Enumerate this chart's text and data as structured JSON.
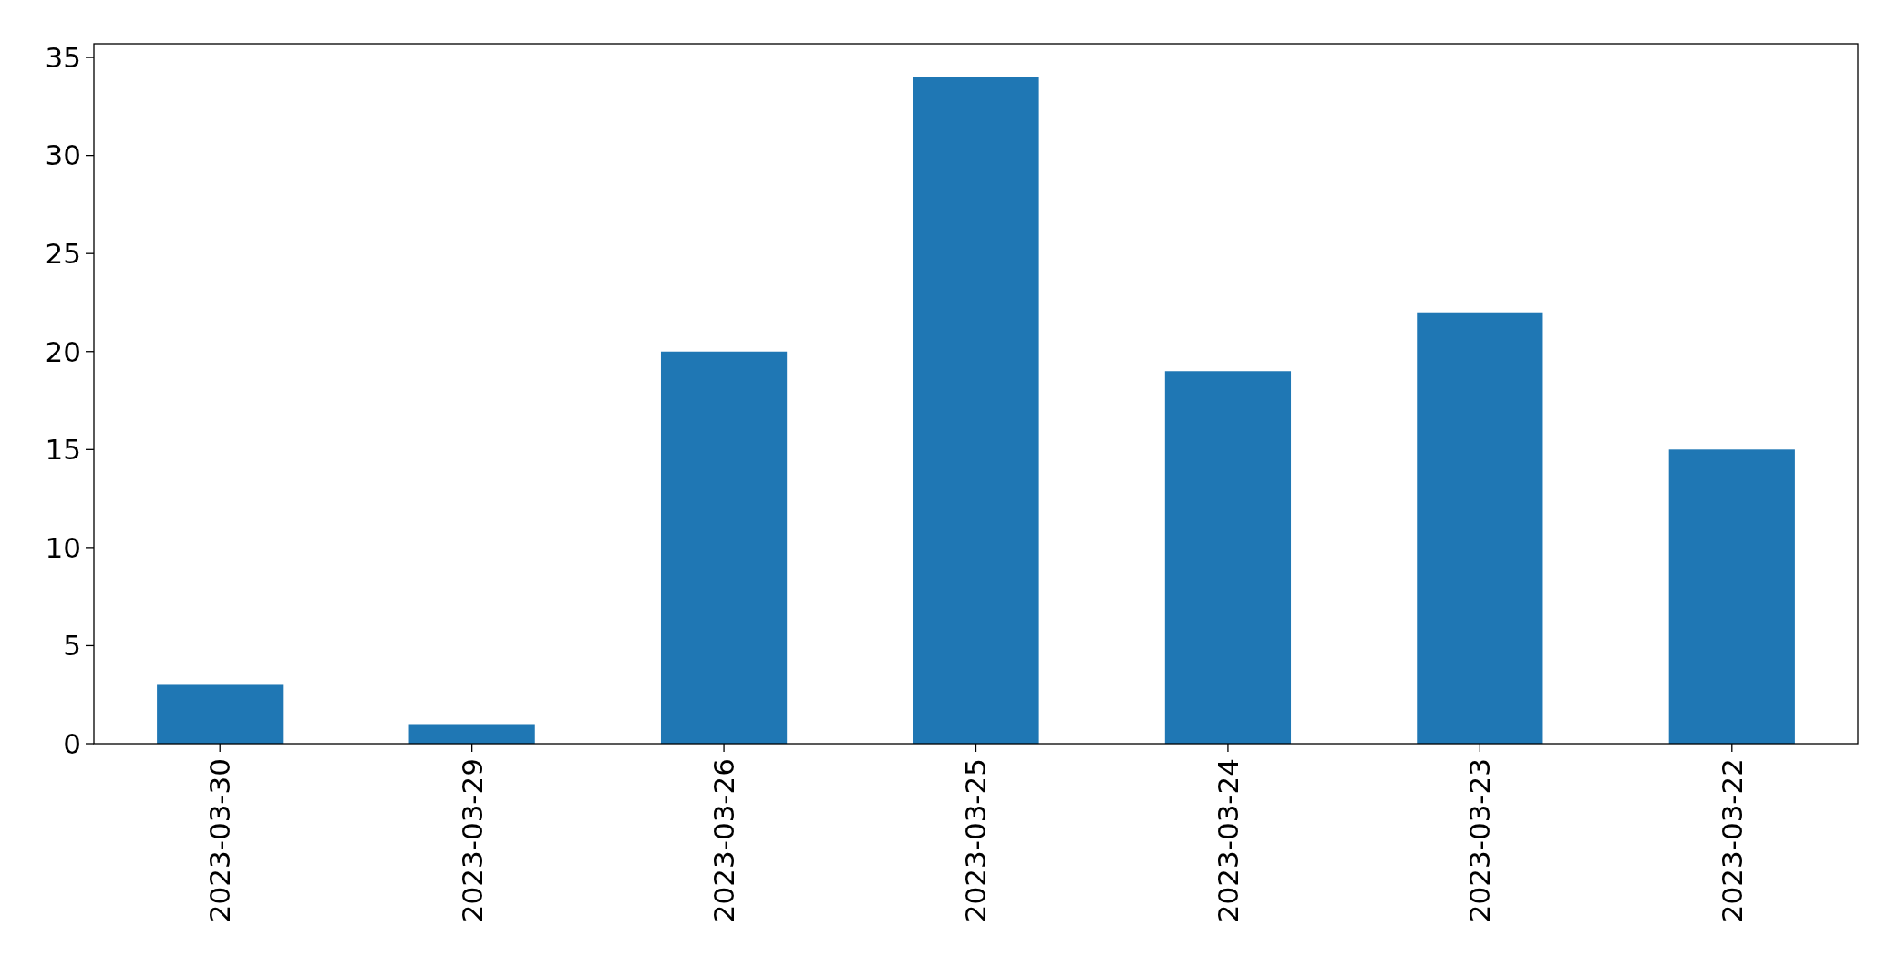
{
  "chart_data": {
    "type": "bar",
    "categories": [
      "2023-03-30",
      "2023-03-29",
      "2023-03-26",
      "2023-03-25",
      "2023-03-24",
      "2023-03-23",
      "2023-03-22"
    ],
    "values": [
      3,
      1,
      20,
      34,
      19,
      22,
      15
    ],
    "color": "#1f77b4",
    "ylim": [
      0,
      35.7
    ],
    "yticks": [
      0,
      5,
      10,
      15,
      20,
      25,
      30,
      35
    ],
    "grid": false
  }
}
